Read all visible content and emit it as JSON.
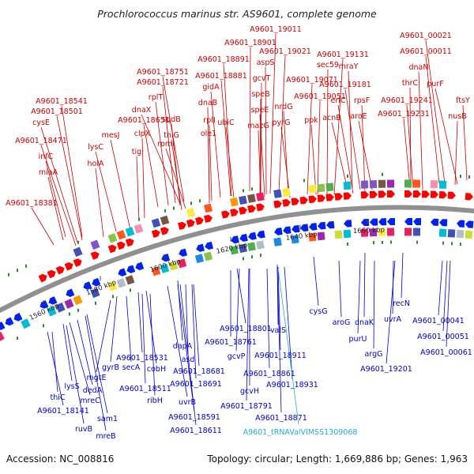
{
  "title": "Prochlorococcus marinus str. AS9601, complete genome",
  "accession": "Accession: NC_008816",
  "summary": "Topology: circular; Length: 1,669,886 bp; Genes: 1,963",
  "colors": {
    "forward_label": "#cc0000",
    "reverse_label": "#0000cc",
    "rna_label": "#22aadd",
    "forward_arrow": "#ff0000",
    "reverse_arrow": "#0022ee",
    "backbone": "#909090",
    "tick": "#2a8a2a"
  },
  "ticks": [
    "1560 kbp",
    "1580 kbp",
    "1600 kbp",
    "1620 kbp",
    "1640 kbp",
    "1660 kbp"
  ],
  "forward_labels": [
    "A9601_19011",
    "A9601_00021",
    "A9601_18901",
    "A9601_19021",
    "A9601_19131",
    "A9601_00011",
    "A9601_18891",
    "aspS",
    "sec59",
    "mraY",
    "dnaN",
    "A9601_18751",
    "A9601_18881",
    "gcvT",
    "A9601_19071",
    "A9601_19181",
    "thrC",
    "purF",
    "A9601_18721",
    "gidA",
    "speB",
    "A9601_19051",
    "eriC",
    "rpsF",
    "A9601_19241",
    "ftsY",
    "A9601_18541",
    "rplT",
    "dnaB",
    "nrdG",
    "speE",
    "aroE",
    "A9601_19231",
    "nusB",
    "A9601_18501",
    "sqdB",
    "mazG",
    "ppk",
    "acnB",
    "dnaX",
    "rplI",
    "ubiC",
    "pyrG",
    "A9601_18651",
    "thiG",
    "cysE",
    "mesJ",
    "clpX",
    "rpmI",
    "ole1",
    "A9601_18471",
    "lysC",
    "tig",
    "infC",
    "holA",
    "miaA",
    "A9601_18381"
  ],
  "reverse_labels": [
    "cysG",
    "aroG",
    "dnaK",
    "recN",
    "uvrA",
    "purU",
    "A9601_00041",
    "A9601_00051",
    "A9601_00061",
    "argG",
    "A9601_19201",
    "valS",
    "A9601_18801",
    "A9601_18761",
    "A9601_18911",
    "gcvP",
    "A9601_18861",
    "dapA",
    "asd",
    "A9601_18681",
    "A9601_18691",
    "gcvH",
    "A9601_18931",
    "A9601_18791",
    "A9601_18871",
    "A9601_18531",
    "secA",
    "cobH",
    "gyrB",
    "mgtE",
    "A9601_18511",
    "ribH",
    "uvrB",
    "A9601_18591",
    "A9601_18611",
    "lysS",
    "dedA",
    "thiC",
    "mreC",
    "sam1",
    "A9601_18141",
    "ruvB",
    "mreB"
  ],
  "rna_labels": [
    "A9601_tRNAValVIMSS1309068"
  ]
}
